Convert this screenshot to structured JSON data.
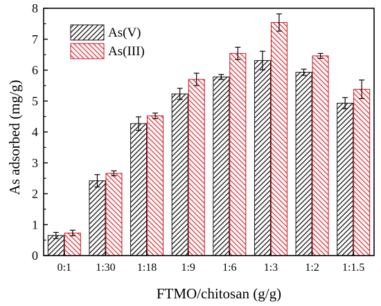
{
  "chart_data": {
    "type": "bar",
    "xlabel": "FTMO/chitosan (g/g)",
    "ylabel": "As adsorbed (mg/g)",
    "ylim": [
      0,
      8
    ],
    "yticks": [
      "0",
      "1",
      "2",
      "3",
      "4",
      "5",
      "6",
      "7",
      "8"
    ],
    "categories": [
      "0:1",
      "1:30",
      "1:18",
      "1:9",
      "1:6",
      "1:3",
      "1:2",
      "1:1.5"
    ],
    "legend_position": "top-left",
    "grid": false,
    "series": [
      {
        "name": "As(V)",
        "values": [
          0.65,
          2.42,
          4.27,
          5.23,
          5.78,
          6.31,
          5.93,
          4.93
        ],
        "errors": [
          0.1,
          0.2,
          0.22,
          0.18,
          0.08,
          0.3,
          0.1,
          0.18
        ],
        "color": "#222222",
        "hatch": "black diagonal"
      },
      {
        "name": "As(III)",
        "values": [
          0.73,
          2.66,
          4.52,
          5.7,
          6.54,
          7.54,
          6.46,
          5.38
        ],
        "errors": [
          0.09,
          0.08,
          0.09,
          0.2,
          0.2,
          0.28,
          0.08,
          0.3
        ],
        "color": "#e8202a",
        "hatch": "red diagonal"
      }
    ]
  }
}
